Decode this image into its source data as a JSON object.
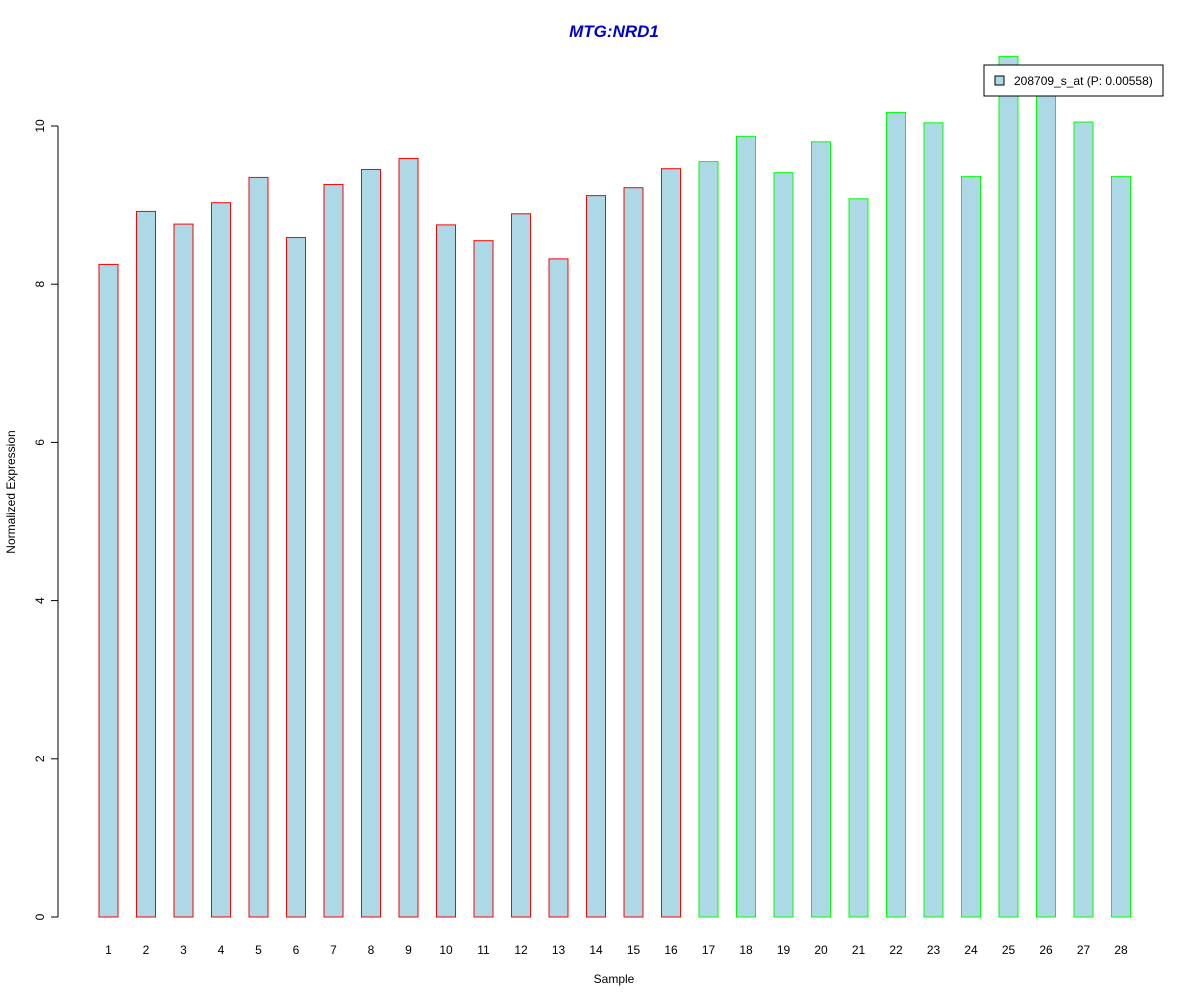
{
  "chart_data": {
    "type": "bar",
    "title": "MTG:NRD1",
    "xlabel": "Sample",
    "ylabel": "Normalized Expression",
    "categories": [
      "1",
      "2",
      "3",
      "4",
      "5",
      "6",
      "7",
      "8",
      "9",
      "10",
      "11",
      "12",
      "13",
      "14",
      "15",
      "16",
      "17",
      "18",
      "19",
      "20",
      "21",
      "22",
      "23",
      "24",
      "25",
      "26",
      "27",
      "28"
    ],
    "series": [
      {
        "name": "208709_s_at (P: 0.00558)",
        "values": [
          8.25,
          8.92,
          8.76,
          9.03,
          9.35,
          8.59,
          9.26,
          9.45,
          9.59,
          8.75,
          8.55,
          8.89,
          8.32,
          9.12,
          9.22,
          9.46,
          9.55,
          9.87,
          9.41,
          9.8,
          9.08,
          10.17,
          10.04,
          9.36,
          10.88,
          10.6,
          10.05,
          9.36
        ]
      }
    ],
    "groups": [
      "red",
      "red",
      "red",
      "red",
      "red",
      "red",
      "red",
      "red",
      "red",
      "red",
      "red",
      "red",
      "red",
      "red",
      "red",
      "red",
      "green",
      "green",
      "green",
      "green",
      "green",
      "green",
      "green",
      "green",
      "green",
      "green",
      "green",
      "green"
    ],
    "yticks": [
      "0",
      "2",
      "4",
      "6",
      "8",
      "10"
    ],
    "ylim": [
      0,
      10.9
    ],
    "grid": false,
    "legend_position": "top-right",
    "colors": {
      "title": "#0000cc",
      "bar_fill": "#add8e6",
      "red_border": "#ff0000",
      "green_border": "#00ff00",
      "axis": "#000000"
    }
  }
}
